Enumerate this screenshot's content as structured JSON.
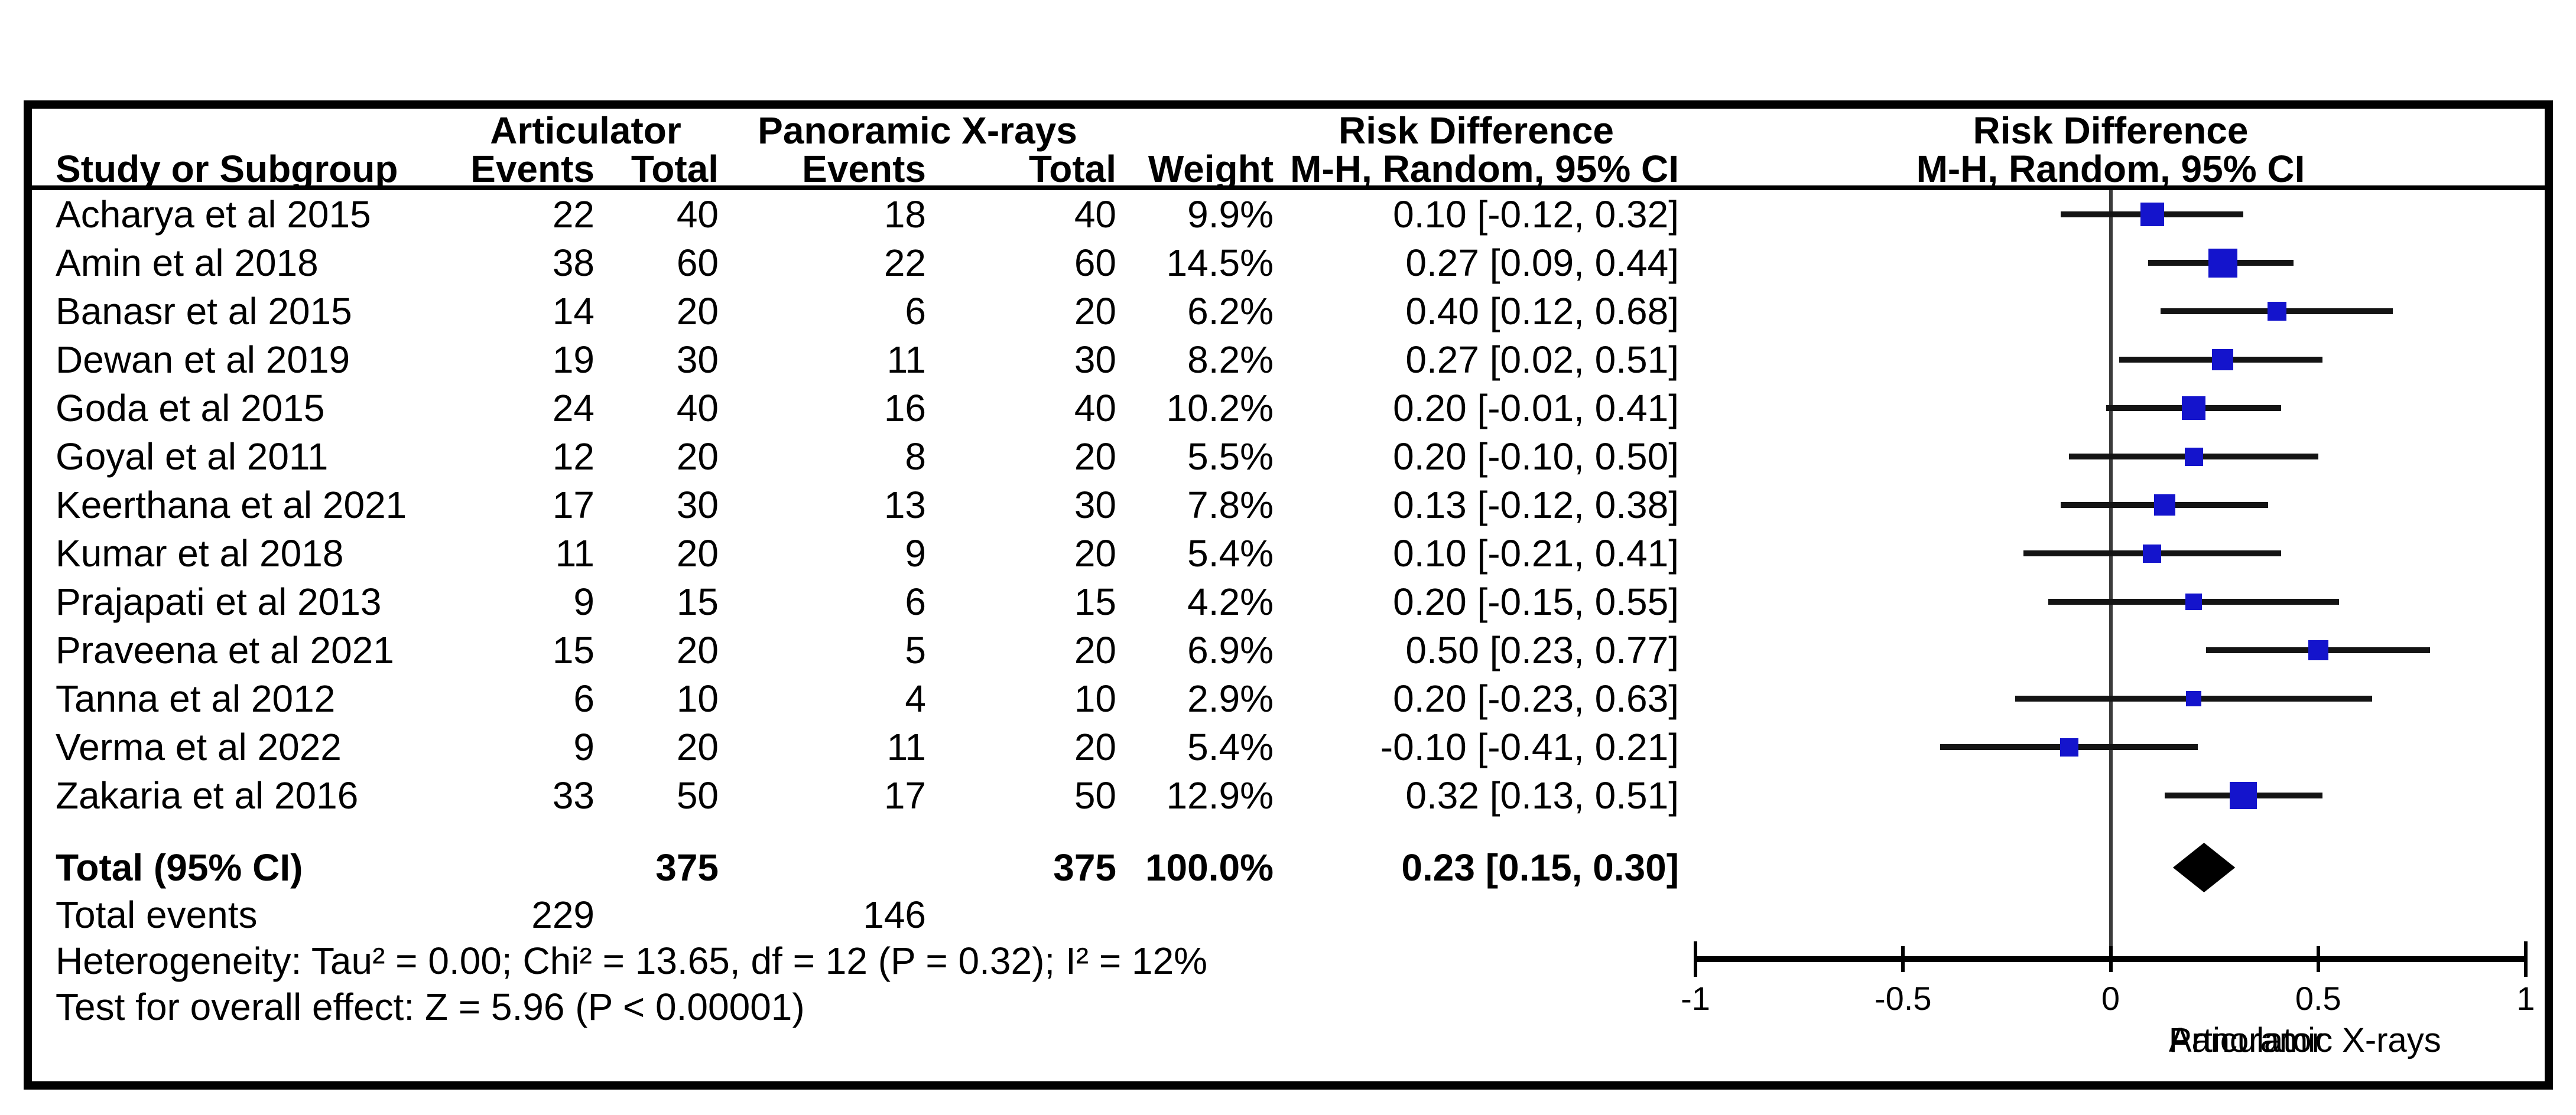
{
  "labels": {
    "study_or_subgroup": "Study or Subgroup",
    "events": "Events",
    "total": "Total",
    "weight": "Weight",
    "mh_ci": "M-H, Random, 95% CI",
    "risk_difference": "Risk Difference",
    "articulator": "Articulator",
    "panoramic": "Panoramic X-rays",
    "total_95ci": "Total (95% CI)",
    "total_events": "Total events"
  },
  "colors": {
    "marker_blue": "#1414cc",
    "ci_line": "#141414",
    "diamond": "#000000",
    "zero_line": "#3c3c3c",
    "axis": "#000000"
  },
  "chart_data": {
    "type": "scatter",
    "subtype": "forest-plot",
    "title": "Risk Difference",
    "effect_method": "M-H, Random, 95% CI",
    "xlim": [
      -1,
      1
    ],
    "axis_ticks": [
      {
        "value": -1,
        "label": "-1"
      },
      {
        "value": -0.5,
        "label": "-0.5"
      },
      {
        "value": 0,
        "label": "0"
      },
      {
        "value": 0.5,
        "label": "0.5"
      },
      {
        "value": 1,
        "label": "1"
      }
    ],
    "favours_left": "Articulator",
    "favours_right": "Panoramic X-rays",
    "studies": [
      {
        "name": "Acharya et al 2015",
        "events1": 22,
        "total1": 40,
        "events2": 18,
        "total2": 40,
        "weight": 9.9,
        "weight_label": "9.9%",
        "rd": 0.1,
        "ci_low": -0.12,
        "ci_high": 0.32,
        "ci_label": "0.10 [-0.12, 0.32]"
      },
      {
        "name": "Amin et al 2018",
        "events1": 38,
        "total1": 60,
        "events2": 22,
        "total2": 60,
        "weight": 14.5,
        "weight_label": "14.5%",
        "rd": 0.27,
        "ci_low": 0.09,
        "ci_high": 0.44,
        "ci_label": "0.27 [0.09, 0.44]"
      },
      {
        "name": "Banasr et al 2015",
        "events1": 14,
        "total1": 20,
        "events2": 6,
        "total2": 20,
        "weight": 6.2,
        "weight_label": "6.2%",
        "rd": 0.4,
        "ci_low": 0.12,
        "ci_high": 0.68,
        "ci_label": "0.40 [0.12, 0.68]"
      },
      {
        "name": "Dewan et al 2019",
        "events1": 19,
        "total1": 30,
        "events2": 11,
        "total2": 30,
        "weight": 8.2,
        "weight_label": "8.2%",
        "rd": 0.27,
        "ci_low": 0.02,
        "ci_high": 0.51,
        "ci_label": "0.27 [0.02, 0.51]"
      },
      {
        "name": "Goda et al 2015",
        "events1": 24,
        "total1": 40,
        "events2": 16,
        "total2": 40,
        "weight": 10.2,
        "weight_label": "10.2%",
        "rd": 0.2,
        "ci_low": -0.01,
        "ci_high": 0.41,
        "ci_label": "0.20 [-0.01, 0.41]"
      },
      {
        "name": "Goyal et al 2011",
        "events1": 12,
        "total1": 20,
        "events2": 8,
        "total2": 20,
        "weight": 5.5,
        "weight_label": "5.5%",
        "rd": 0.2,
        "ci_low": -0.1,
        "ci_high": 0.5,
        "ci_label": "0.20 [-0.10, 0.50]"
      },
      {
        "name": "Keerthana et al 2021",
        "events1": 17,
        "total1": 30,
        "events2": 13,
        "total2": 30,
        "weight": 7.8,
        "weight_label": "7.8%",
        "rd": 0.13,
        "ci_low": -0.12,
        "ci_high": 0.38,
        "ci_label": "0.13 [-0.12, 0.38]"
      },
      {
        "name": "Kumar et al 2018",
        "events1": 11,
        "total1": 20,
        "events2": 9,
        "total2": 20,
        "weight": 5.4,
        "weight_label": "5.4%",
        "rd": 0.1,
        "ci_low": -0.21,
        "ci_high": 0.41,
        "ci_label": "0.10 [-0.21, 0.41]"
      },
      {
        "name": "Prajapati et al 2013",
        "events1": 9,
        "total1": 15,
        "events2": 6,
        "total2": 15,
        "weight": 4.2,
        "weight_label": "4.2%",
        "rd": 0.2,
        "ci_low": -0.15,
        "ci_high": 0.55,
        "ci_label": "0.20 [-0.15, 0.55]"
      },
      {
        "name": "Praveena et al 2021",
        "events1": 15,
        "total1": 20,
        "events2": 5,
        "total2": 20,
        "weight": 6.9,
        "weight_label": "6.9%",
        "rd": 0.5,
        "ci_low": 0.23,
        "ci_high": 0.77,
        "ci_label": "0.50 [0.23, 0.77]"
      },
      {
        "name": "Tanna et al 2012",
        "events1": 6,
        "total1": 10,
        "events2": 4,
        "total2": 10,
        "weight": 2.9,
        "weight_label": "2.9%",
        "rd": 0.2,
        "ci_low": -0.23,
        "ci_high": 0.63,
        "ci_label": "0.20 [-0.23, 0.63]"
      },
      {
        "name": "Verma et al 2022",
        "events1": 9,
        "total1": 20,
        "events2": 11,
        "total2": 20,
        "weight": 5.4,
        "weight_label": "5.4%",
        "rd": -0.1,
        "ci_low": -0.41,
        "ci_high": 0.21,
        "ci_label": "-0.10 [-0.41, 0.21]"
      },
      {
        "name": "Zakaria et al 2016",
        "events1": 33,
        "total1": 50,
        "events2": 17,
        "total2": 50,
        "weight": 12.9,
        "weight_label": "12.9%",
        "rd": 0.32,
        "ci_low": 0.13,
        "ci_high": 0.51,
        "ci_label": "0.32 [0.13, 0.51]"
      }
    ],
    "total": {
      "total1": 375,
      "total2": 375,
      "weight_label": "100.0%",
      "rd": 0.23,
      "ci_low": 0.15,
      "ci_high": 0.3,
      "ci_label": "0.23 [0.15, 0.30]"
    },
    "total_events": {
      "articulator": 229,
      "panoramic": 146
    },
    "heterogeneity": "Heterogeneity: Tau² = 0.00; Chi² = 13.65, df = 12 (P = 0.32); I² = 12%",
    "overall_effect": "Test for overall effect: Z = 5.96 (P < 0.00001)"
  }
}
